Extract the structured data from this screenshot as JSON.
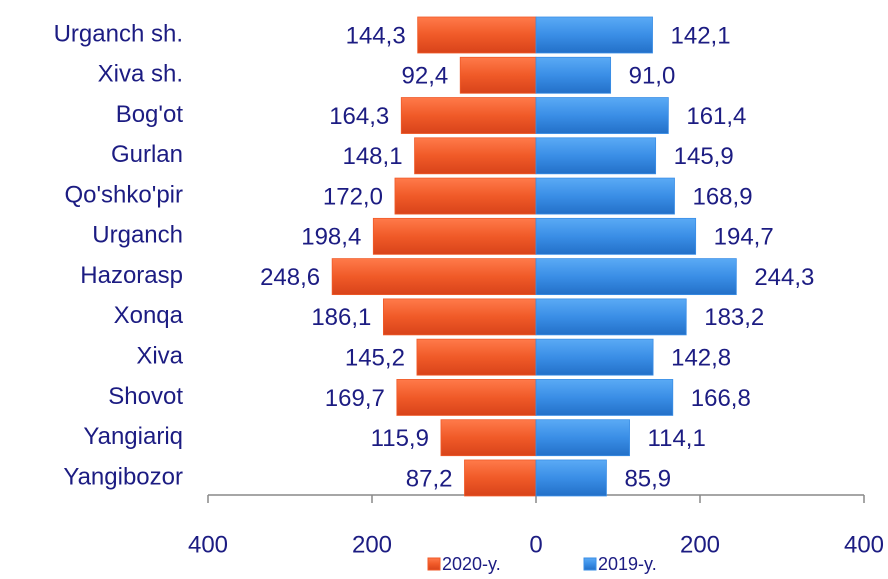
{
  "chart_data": {
    "type": "butterfly",
    "categories": [
      "Urganch sh.",
      "Xiva sh.",
      "Bog'ot",
      "Gurlan",
      "Qo'shko'pir",
      "Urganch",
      "Hazorasp",
      "Xonqa",
      "Xiva",
      "Shovot",
      "Yangiariq",
      "Yangibozor"
    ],
    "series": [
      {
        "name": "2020-y.",
        "color": "#f05a28",
        "values": [
          -144.3,
          -92.4,
          -164.3,
          -148.1,
          -172.0,
          -198.4,
          -248.6,
          -186.1,
          -145.2,
          -169.7,
          -115.9,
          -87.2
        ],
        "value_labels": [
          "144,3",
          "92,4",
          "164,3",
          "148,1",
          "172,0",
          "198,4",
          "248,6",
          "186,1",
          "145,2",
          "169,7",
          "115,9",
          "87,2"
        ]
      },
      {
        "name": "2019-y.",
        "color": "#3a8ee6",
        "values": [
          142.1,
          91.0,
          161.4,
          145.9,
          168.9,
          194.7,
          244.3,
          183.2,
          142.8,
          166.8,
          114.1,
          85.9
        ],
        "value_labels": [
          "142,1",
          "91,0",
          "161,4",
          "145,9",
          "168,9",
          "194,7",
          "244,3",
          "183,2",
          "142,8",
          "166,8",
          "114,1",
          "85,9"
        ]
      }
    ],
    "xlim": [
      -400,
      400
    ],
    "xticks": [
      {
        "value": -400,
        "label": "400"
      },
      {
        "value": -200,
        "label": "200"
      },
      0,
      200,
      400
    ],
    "legend": "bottom"
  }
}
